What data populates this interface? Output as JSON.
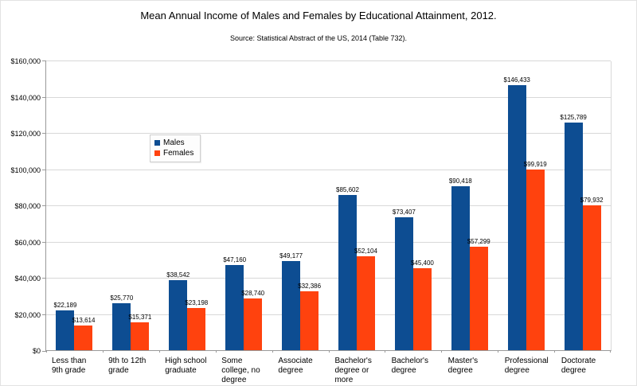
{
  "title": "Mean Annual Income of Males and Females by Educational Attainment, 2012.",
  "subtitle": "Source: Statistical Abstract of the US, 2014 (Table 732).",
  "colors": {
    "males_bar": "#0D4D92",
    "females_bar": "#FF420E",
    "gridline": "#d8d8d8",
    "axis": "#9a9a9a"
  },
  "chart_data": {
    "type": "bar",
    "title": "Mean Annual Income of Males and Females by Educational Attainment, 2012.",
    "subtitle": "Source: Statistical Abstract of the US, 2014 (Table 732).",
    "categories": [
      "Less than 9th grade",
      "9th to 12th grade",
      "High school graduate",
      "Some college, no degree",
      "Associate degree",
      "Bachelor's degree or more",
      "Bachelor's degree",
      "Master's degree",
      "Professional degree",
      "Doctorate degree"
    ],
    "series": [
      {
        "name": "Males",
        "color": "#0D4D92",
        "values": [
          22189,
          25770,
          38542,
          47160,
          49177,
          85602,
          73407,
          90418,
          146433,
          125789
        ],
        "labels": [
          "$22,189",
          "$25,770",
          "$38,542",
          "$47,160",
          "$49,177",
          "$85,602",
          "$73,407",
          "$90,418",
          "$146,433",
          "$125,789"
        ]
      },
      {
        "name": "Females",
        "color": "#FF420E",
        "values": [
          13614,
          15371,
          23198,
          28740,
          32386,
          52104,
          45400,
          57299,
          99919,
          79932
        ],
        "labels": [
          "$13,614",
          "$15,371",
          "$23,198",
          "$28,740",
          "$32,386",
          "$52,104",
          "$45,400",
          "$57,299",
          "$99,919",
          "$79,932"
        ]
      }
    ],
    "xlabel": "",
    "ylabel": "",
    "ylim": [
      0,
      160000
    ],
    "y_tick_step": 20000,
    "y_tick_labels": [
      "$0",
      "$20,000",
      "$40,000",
      "$60,000",
      "$80,000",
      "$100,000",
      "$120,000",
      "$140,000",
      "$160,000"
    ],
    "grid": "horizontal",
    "legend_position": "inside-upper-left"
  }
}
